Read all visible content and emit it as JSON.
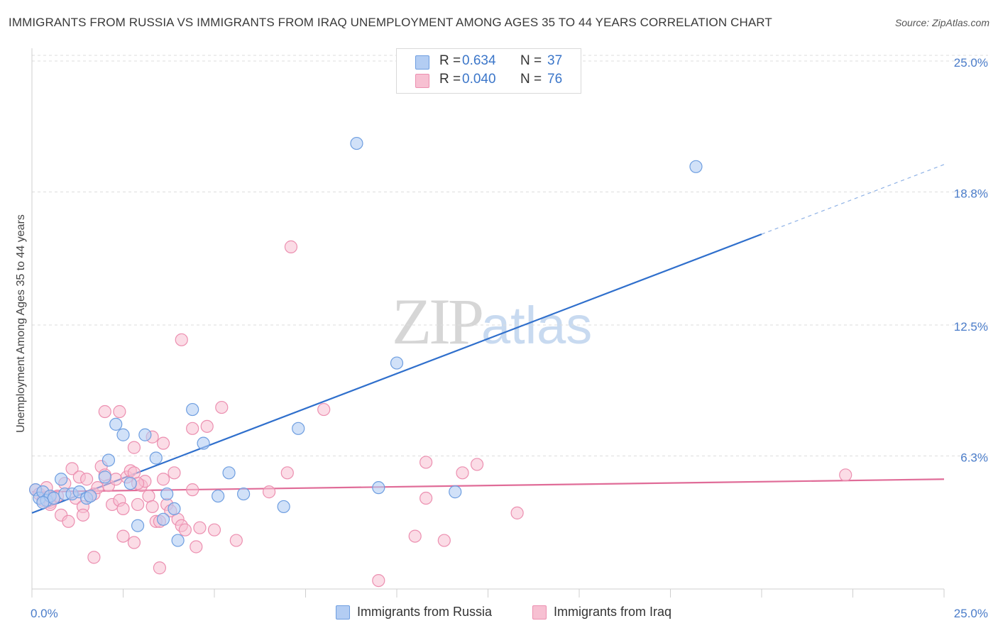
{
  "header": {
    "title": "IMMIGRANTS FROM RUSSIA VS IMMIGRANTS FROM IRAQ UNEMPLOYMENT AMONG AGES 35 TO 44 YEARS CORRELATION CHART",
    "source": "Source: ZipAtlas.com"
  },
  "watermark": {
    "zip": "ZIP",
    "atlas": "atlas"
  },
  "legend": {
    "russia": {
      "r_label": "R =",
      "r_value": "0.634",
      "n_label": "N =",
      "n_value": "37"
    },
    "iraq": {
      "r_label": "R =",
      "r_value": "0.040",
      "n_label": "N =",
      "n_value": "76"
    }
  },
  "colors": {
    "russia_fill": "#b3cdf3",
    "russia_stroke": "#6e9ee0",
    "russia_line": "#2f6fcc",
    "iraq_fill": "#f7c0d2",
    "iraq_stroke": "#ec8fb0",
    "iraq_line": "#e06c98",
    "tick": "#4a7cc9",
    "grid": "#dddddd"
  },
  "chart_data": {
    "type": "scatter",
    "title": "IMMIGRANTS FROM RUSSIA VS IMMIGRANTS FROM IRAQ UNEMPLOYMENT AMONG AGES 35 TO 44 YEARS CORRELATION CHART",
    "xlabel": "",
    "ylabel": "Unemployment Among Ages 35 to 44 years",
    "xlim": [
      0,
      25
    ],
    "ylim": [
      0,
      25
    ],
    "x_tick_labels": [
      {
        "value": 0,
        "label": "0.0%"
      },
      {
        "value": 25,
        "label": "25.0%"
      }
    ],
    "x_tick_marks": [
      0,
      2.5,
      5,
      7.5,
      10,
      12.5,
      15,
      17.5,
      20,
      22.5,
      25
    ],
    "y_ticks": [
      {
        "value": 6.3,
        "label": "6.3%"
      },
      {
        "value": 12.5,
        "label": "12.5%"
      },
      {
        "value": 18.8,
        "label": "18.8%"
      },
      {
        "value": 25.0,
        "label": "25.0%"
      }
    ],
    "grid": true,
    "legend_position": "top-center",
    "series": [
      {
        "name": "Immigrants from Russia",
        "r": 0.634,
        "n": 37,
        "trend": {
          "x0": 0,
          "y0": 3.6,
          "x1": 20,
          "y1": 16.8,
          "dashed_to_x": 25,
          "dashed_to_y": 20.1
        },
        "points": [
          [
            0.1,
            4.7
          ],
          [
            0.2,
            4.3
          ],
          [
            0.3,
            4.6
          ],
          [
            0.4,
            4.2
          ],
          [
            0.5,
            4.4
          ],
          [
            0.6,
            4.3
          ],
          [
            0.8,
            5.2
          ],
          [
            0.9,
            4.5
          ],
          [
            1.1,
            4.5
          ],
          [
            1.3,
            4.6
          ],
          [
            1.5,
            4.3
          ],
          [
            1.6,
            4.4
          ],
          [
            2.0,
            5.3
          ],
          [
            2.1,
            6.1
          ],
          [
            2.3,
            7.8
          ],
          [
            2.5,
            7.3
          ],
          [
            2.7,
            5.0
          ],
          [
            2.9,
            3.0
          ],
          [
            3.1,
            7.3
          ],
          [
            3.4,
            6.2
          ],
          [
            3.6,
            3.3
          ],
          [
            3.7,
            4.5
          ],
          [
            3.9,
            3.8
          ],
          [
            4.0,
            2.3
          ],
          [
            4.4,
            8.5
          ],
          [
            4.7,
            6.9
          ],
          [
            5.1,
            4.4
          ],
          [
            5.4,
            5.5
          ],
          [
            5.8,
            4.5
          ],
          [
            6.9,
            3.9
          ],
          [
            7.3,
            7.6
          ],
          [
            8.9,
            21.1
          ],
          [
            9.5,
            4.8
          ],
          [
            10.0,
            10.7
          ],
          [
            11.6,
            4.6
          ],
          [
            18.2,
            20.0
          ],
          [
            0.3,
            4.1
          ]
        ]
      },
      {
        "name": "Immigrants from Iraq",
        "r": 0.04,
        "n": 76,
        "trend": {
          "x0": 0,
          "y0": 4.6,
          "x1": 25,
          "y1": 5.2
        },
        "points": [
          [
            0.1,
            4.7
          ],
          [
            0.2,
            4.5
          ],
          [
            0.3,
            4.2
          ],
          [
            0.4,
            4.8
          ],
          [
            0.5,
            4.1
          ],
          [
            0.6,
            4.3
          ],
          [
            0.7,
            4.4
          ],
          [
            0.8,
            3.5
          ],
          [
            0.9,
            5.0
          ],
          [
            1.0,
            3.2
          ],
          [
            1.1,
            5.7
          ],
          [
            1.2,
            4.3
          ],
          [
            1.3,
            5.3
          ],
          [
            1.4,
            3.9
          ],
          [
            1.5,
            5.2
          ],
          [
            1.6,
            4.4
          ],
          [
            1.7,
            4.5
          ],
          [
            1.8,
            4.8
          ],
          [
            1.9,
            5.8
          ],
          [
            2.0,
            5.4
          ],
          [
            2.1,
            4.9
          ],
          [
            2.2,
            4.0
          ],
          [
            2.3,
            5.2
          ],
          [
            2.4,
            4.2
          ],
          [
            2.5,
            3.8
          ],
          [
            2.6,
            5.3
          ],
          [
            2.7,
            5.6
          ],
          [
            2.8,
            5.5
          ],
          [
            2.9,
            4.0
          ],
          [
            3.0,
            4.9
          ],
          [
            3.1,
            5.1
          ],
          [
            3.2,
            4.4
          ],
          [
            3.3,
            3.9
          ],
          [
            3.4,
            3.2
          ],
          [
            3.5,
            3.2
          ],
          [
            3.6,
            5.2
          ],
          [
            3.7,
            4.0
          ],
          [
            3.8,
            3.7
          ],
          [
            3.9,
            5.5
          ],
          [
            4.0,
            3.3
          ],
          [
            4.1,
            3.0
          ],
          [
            4.2,
            2.8
          ],
          [
            4.4,
            4.7
          ],
          [
            4.6,
            2.9
          ],
          [
            4.8,
            7.7
          ],
          [
            5.0,
            2.8
          ],
          [
            5.2,
            8.6
          ],
          [
            5.6,
            2.3
          ],
          [
            6.5,
            4.6
          ],
          [
            7.0,
            5.5
          ],
          [
            7.1,
            16.2
          ],
          [
            8.0,
            8.5
          ],
          [
            2.0,
            8.4
          ],
          [
            2.4,
            8.4
          ],
          [
            3.3,
            7.2
          ],
          [
            4.1,
            11.8
          ],
          [
            3.6,
            6.9
          ],
          [
            2.8,
            6.7
          ],
          [
            1.7,
            1.5
          ],
          [
            2.5,
            2.5
          ],
          [
            2.8,
            2.2
          ],
          [
            3.5,
            1.0
          ],
          [
            4.5,
            2.0
          ],
          [
            9.5,
            0.4
          ],
          [
            10.8,
            6.0
          ],
          [
            10.8,
            4.3
          ],
          [
            10.5,
            2.5
          ],
          [
            11.8,
            5.5
          ],
          [
            12.2,
            5.9
          ],
          [
            13.3,
            3.6
          ],
          [
            22.3,
            5.4
          ],
          [
            11.3,
            2.3
          ],
          [
            4.4,
            7.6
          ],
          [
            2.9,
            5.0
          ],
          [
            1.4,
            3.5
          ],
          [
            0.5,
            4.0
          ]
        ]
      }
    ]
  }
}
